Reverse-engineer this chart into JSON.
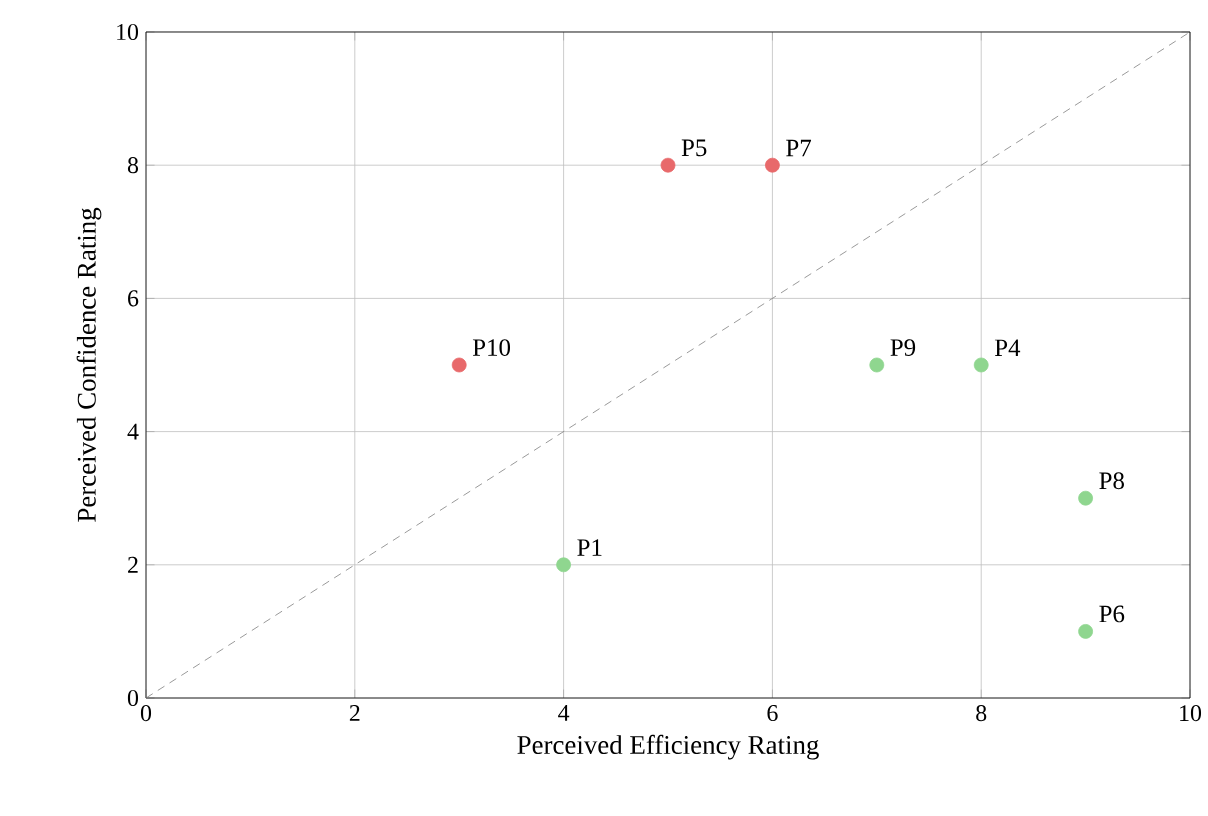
{
  "chart_data": {
    "type": "scatter",
    "xlabel": "Perceived Efficiency Rating",
    "ylabel": "Perceived Confidence Rating",
    "xlim": [
      0,
      10
    ],
    "ylim": [
      0,
      10
    ],
    "xticks": [
      0,
      2,
      4,
      6,
      8,
      10
    ],
    "yticks": [
      0,
      2,
      4,
      6,
      8,
      10
    ],
    "grid": true,
    "marker": "circle",
    "series": [
      {
        "color": "#e8696b",
        "x": [
          5,
          6,
          3
        ],
        "values": [
          8,
          8,
          5
        ]
      },
      {
        "color": "#8fd68f",
        "x": [
          4,
          8,
          9,
          9,
          7
        ],
        "values": [
          2,
          5,
          1,
          3,
          5
        ]
      },
      {
        "type": "line",
        "color": "#808080",
        "line_style": "dashed",
        "marker": "none",
        "x": [
          0,
          10
        ],
        "values": [
          0,
          10
        ]
      }
    ],
    "annotations": [
      {
        "text": "P1",
        "x": 4,
        "y": 2
      },
      {
        "text": "P4",
        "x": 8,
        "y": 5
      },
      {
        "text": "P5",
        "x": 5,
        "y": 8
      },
      {
        "text": "P6",
        "x": 9,
        "y": 1
      },
      {
        "text": "P7",
        "x": 6,
        "y": 8
      },
      {
        "text": "P8",
        "x": 9,
        "y": 3
      },
      {
        "text": "P9",
        "x": 7,
        "y": 5
      },
      {
        "text": "P10",
        "x": 3,
        "y": 5
      }
    ]
  }
}
